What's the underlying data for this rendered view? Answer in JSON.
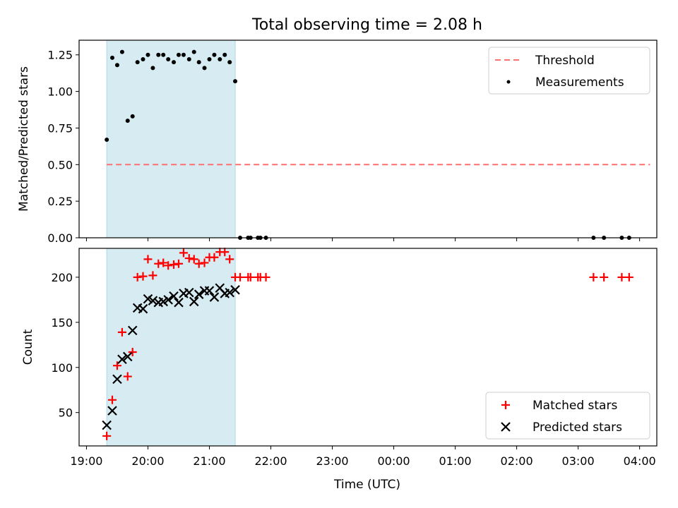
{
  "figure": {
    "title": "Total observing time = 2.08 h",
    "xlabel": "Time (UTC)"
  },
  "x_tick_labels": [
    "19:00",
    "20:00",
    "21:00",
    "22:00",
    "23:00",
    "00:00",
    "01:00",
    "02:00",
    "03:00",
    "04:00"
  ],
  "colors": {
    "shade": "#add8e6",
    "threshold": "#ff6f6f",
    "measurements": "#000000",
    "matched": "#ff0000",
    "predicted": "#000000"
  },
  "chart_data": [
    {
      "type": "scatter",
      "ylabel": "Matched/Predicted stars",
      "xlim": [
        18.88,
        28.28
      ],
      "ylim": [
        0,
        1.35
      ],
      "x_unit": "hours UTC (values above 24 are after midnight)",
      "y_ticks": [
        "0.00",
        "0.25",
        "0.50",
        "0.75",
        "1.00",
        "1.25"
      ],
      "shaded_span": [
        19.33,
        21.42
      ],
      "legend": {
        "position": "upper right",
        "entries": [
          "Threshold",
          "Measurements"
        ]
      },
      "threshold": {
        "name": "Threshold",
        "y": 0.5,
        "x_range": [
          19.33,
          28.17
        ],
        "style": "dashed"
      },
      "series": [
        {
          "name": "Measurements",
          "marker": "dot",
          "points": [
            [
              19.33,
              0.67
            ],
            [
              19.42,
              1.23
            ],
            [
              19.5,
              1.18
            ],
            [
              19.58,
              1.27
            ],
            [
              19.67,
              0.8
            ],
            [
              19.75,
              0.83
            ],
            [
              19.83,
              1.2
            ],
            [
              19.92,
              1.22
            ],
            [
              20.0,
              1.25
            ],
            [
              20.08,
              1.16
            ],
            [
              20.17,
              1.25
            ],
            [
              20.25,
              1.25
            ],
            [
              20.33,
              1.22
            ],
            [
              20.42,
              1.2
            ],
            [
              20.5,
              1.25
            ],
            [
              20.58,
              1.25
            ],
            [
              20.67,
              1.22
            ],
            [
              20.75,
              1.27
            ],
            [
              20.83,
              1.2
            ],
            [
              20.92,
              1.16
            ],
            [
              21.0,
              1.22
            ],
            [
              21.08,
              1.25
            ],
            [
              21.17,
              1.22
            ],
            [
              21.25,
              1.25
            ],
            [
              21.33,
              1.2
            ],
            [
              21.42,
              1.07
            ],
            [
              21.5,
              0.0
            ],
            [
              21.63,
              0.0
            ],
            [
              21.67,
              0.0
            ],
            [
              21.79,
              0.0
            ],
            [
              21.83,
              0.0
            ],
            [
              21.92,
              0.0
            ],
            [
              27.25,
              0.0
            ],
            [
              27.42,
              0.0
            ],
            [
              27.71,
              0.0
            ],
            [
              27.83,
              0.0
            ]
          ]
        }
      ]
    },
    {
      "type": "scatter",
      "ylabel": "Count",
      "xlim": [
        18.88,
        28.28
      ],
      "ylim": [
        13,
        232
      ],
      "y_ticks": [
        "50",
        "100",
        "150",
        "200"
      ],
      "shaded_span": [
        19.33,
        21.42
      ],
      "legend": {
        "position": "lower right",
        "entries": [
          "Matched stars",
          "Predicted stars"
        ]
      },
      "series": [
        {
          "name": "Matched stars",
          "marker": "plus",
          "points": [
            [
              19.33,
              24
            ],
            [
              19.42,
              64
            ],
            [
              19.5,
              102
            ],
            [
              19.58,
              139
            ],
            [
              19.67,
              90
            ],
            [
              19.75,
              117
            ],
            [
              19.83,
              200
            ],
            [
              19.92,
              201
            ],
            [
              20.0,
              220
            ],
            [
              20.08,
              202
            ],
            [
              20.17,
              215
            ],
            [
              20.25,
              216
            ],
            [
              20.33,
              213
            ],
            [
              20.42,
              214
            ],
            [
              20.5,
              215
            ],
            [
              20.58,
              227
            ],
            [
              20.67,
              221
            ],
            [
              20.75,
              220
            ],
            [
              20.83,
              215
            ],
            [
              20.92,
              216
            ],
            [
              21.0,
              222
            ],
            [
              21.08,
              222
            ],
            [
              21.17,
              228
            ],
            [
              21.25,
              228
            ],
            [
              21.33,
              220
            ],
            [
              21.42,
              200
            ],
            [
              21.5,
              200
            ],
            [
              21.63,
              200
            ],
            [
              21.67,
              200
            ],
            [
              21.79,
              200
            ],
            [
              21.83,
              200
            ],
            [
              21.92,
              200
            ],
            [
              27.25,
              200
            ],
            [
              27.42,
              200
            ],
            [
              27.71,
              200
            ],
            [
              27.83,
              200
            ]
          ]
        },
        {
          "name": "Predicted stars",
          "marker": "x",
          "points": [
            [
              19.33,
              36
            ],
            [
              19.42,
              52
            ],
            [
              19.5,
              87
            ],
            [
              19.58,
              109
            ],
            [
              19.67,
              112
            ],
            [
              19.75,
              141
            ],
            [
              19.83,
              166
            ],
            [
              19.92,
              165
            ],
            [
              20.0,
              176
            ],
            [
              20.08,
              174
            ],
            [
              20.17,
              172
            ],
            [
              20.25,
              173
            ],
            [
              20.33,
              175
            ],
            [
              20.42,
              179
            ],
            [
              20.5,
              172
            ],
            [
              20.58,
              182
            ],
            [
              20.67,
              183
            ],
            [
              20.75,
              173
            ],
            [
              20.83,
              181
            ],
            [
              20.92,
              185
            ],
            [
              21.0,
              185
            ],
            [
              21.08,
              178
            ],
            [
              21.17,
              188
            ],
            [
              21.25,
              182
            ],
            [
              21.33,
              183
            ],
            [
              21.42,
              186
            ]
          ]
        }
      ]
    }
  ]
}
